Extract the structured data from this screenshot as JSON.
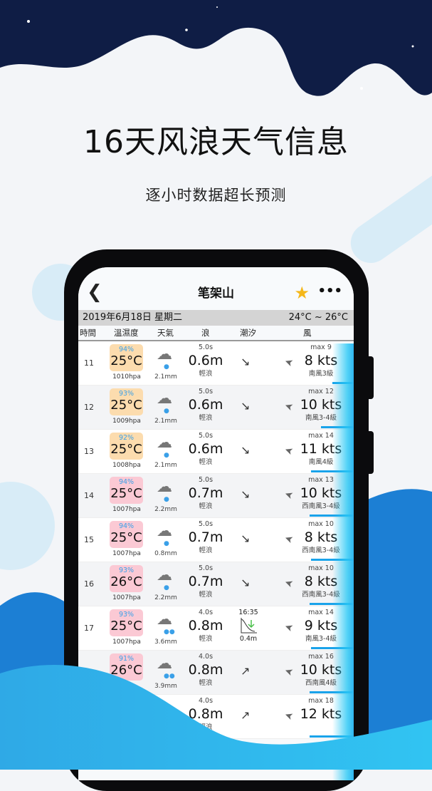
{
  "promo": {
    "headline": "16天风浪天气信息",
    "subtitle": "逐小时数据超长预测"
  },
  "app": {
    "title": "笔架山",
    "back_icon": "chevron-left",
    "favorite_icon": "star",
    "more_icon": "ellipsis",
    "accent": "#1aa3ea"
  },
  "date_bar": {
    "date": "2019年6月18日 星期二",
    "temp_range": "24°C ~ 26°C"
  },
  "columns": [
    "時間",
    "溫濕度",
    "天氣",
    "浪",
    "潮汐",
    "風"
  ],
  "rows": [
    {
      "hour": "11",
      "humidity": "94%",
      "temp": "25°C",
      "pressure": "1010hpa",
      "temp_color": "#fcdcae",
      "rain": "2.1mm",
      "period": "5.0s",
      "wave": "0.6m",
      "wave_label": "輕浪",
      "tide_arrow": "↘",
      "wind_max": "max 9",
      "wind": "8 kts",
      "wind_label": "南風3級"
    },
    {
      "hour": "12",
      "humidity": "93%",
      "temp": "25°C",
      "pressure": "1009hpa",
      "temp_color": "#fcdcae",
      "rain": "2.1mm",
      "period": "5.0s",
      "wave": "0.6m",
      "wave_label": "輕浪",
      "tide_arrow": "↘",
      "wind_max": "max 12",
      "wind": "10 kts",
      "wind_label": "南風3-4級"
    },
    {
      "hour": "13",
      "humidity": "92%",
      "temp": "25°C",
      "pressure": "1008hpa",
      "temp_color": "#fcdcae",
      "rain": "2.1mm",
      "period": "5.0s",
      "wave": "0.6m",
      "wave_label": "輕浪",
      "tide_arrow": "↘",
      "wind_max": "max 14",
      "wind": "11 kts",
      "wind_label": "南風4級"
    },
    {
      "hour": "14",
      "humidity": "94%",
      "temp": "25°C",
      "pressure": "1007hpa",
      "temp_color": "#fbc9d4",
      "rain": "2.2mm",
      "period": "5.0s",
      "wave": "0.7m",
      "wave_label": "輕浪",
      "tide_arrow": "↘",
      "wind_max": "max 13",
      "wind": "10 kts",
      "wind_label": "西南風3-4級"
    },
    {
      "hour": "15",
      "humidity": "94%",
      "temp": "25°C",
      "pressure": "1007hpa",
      "temp_color": "#fbc9d4",
      "rain": "0.8mm",
      "period": "5.0s",
      "wave": "0.7m",
      "wave_label": "輕浪",
      "tide_arrow": "↘",
      "wind_max": "max 10",
      "wind": "8 kts",
      "wind_label": "西南風3-4級"
    },
    {
      "hour": "16",
      "humidity": "93%",
      "temp": "26°C",
      "pressure": "1007hpa",
      "temp_color": "#fbc9d4",
      "rain": "2.2mm",
      "period": "5.0s",
      "wave": "0.7m",
      "wave_label": "輕浪",
      "tide_arrow": "↘",
      "wind_max": "max 10",
      "wind": "8 kts",
      "wind_label": "西南風3-4級"
    },
    {
      "hour": "17",
      "humidity": "93%",
      "temp": "25°C",
      "pressure": "1007hpa",
      "temp_color": "#fbc9d4",
      "rain": "3.6mm",
      "period": "4.0s",
      "wave": "0.8m",
      "wave_label": "輕浪",
      "tide_time": "16:35",
      "tide_height": "0.4m",
      "wind_max": "max 14",
      "wind": "9 kts",
      "wind_label": "南風3-4級"
    },
    {
      "humidity": "91%",
      "temp": "26°C",
      "temp_color": "#fbc9d4",
      "rain": "3.9mm",
      "period": "4.0s",
      "wave": "0.8m",
      "wave_label": "輕浪",
      "tide_arrow": "↗",
      "wind_max": "max 16",
      "wind": "10 kts",
      "wind_label": "西南風4級"
    },
    {
      "period": "4.0s",
      "wave": "0.8m",
      "wave_label": "輕浪",
      "tide_arrow": "↗",
      "wind_max": "max 18",
      "wind": "12 kts"
    }
  ]
}
